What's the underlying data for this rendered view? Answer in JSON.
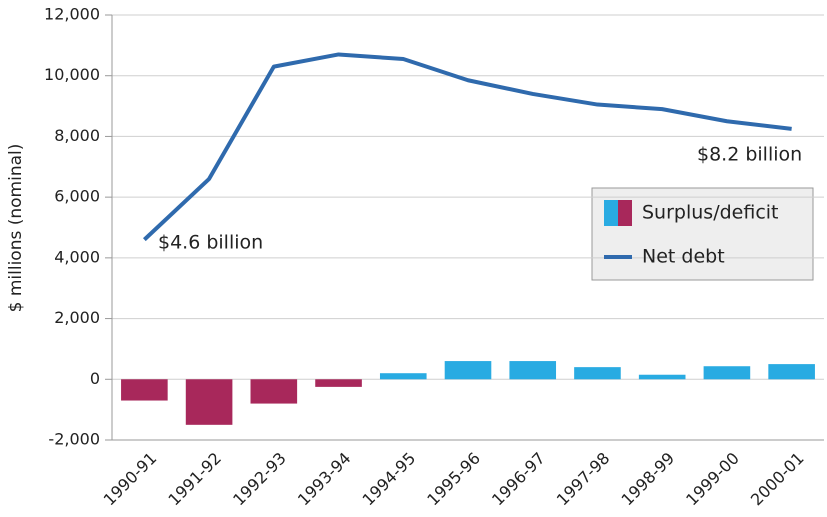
{
  "chart_data": {
    "type": "bar",
    "ylabel": "$ millions (nominal)",
    "categories": [
      "1990-91",
      "1991-92",
      "1992-93",
      "1993-94",
      "1994-95",
      "1995-96",
      "1996-97",
      "1997-98",
      "1998-99",
      "1999-00",
      "2000-01"
    ],
    "series": [
      {
        "name": "Surplus/deficit",
        "kind": "bar",
        "color": "#29abe2",
        "negative_color": "#a8285b",
        "values": [
          -700,
          -1500,
          -800,
          -250,
          200,
          600,
          600,
          400,
          150,
          430,
          500
        ]
      },
      {
        "name": "Net debt",
        "kind": "line",
        "color": "#2f6aad",
        "values": [
          4600,
          6600,
          10300,
          10700,
          10550,
          9850,
          9400,
          9050,
          8900,
          8500,
          8250
        ]
      }
    ],
    "ylim": [
      -2000,
      12000
    ],
    "yticks": [
      {
        "value": -2000,
        "label": "-2,000"
      },
      0,
      {
        "value": 2000,
        "label": "2,000"
      },
      {
        "value": 4000,
        "label": "4,000"
      },
      {
        "value": 6000,
        "label": "6,000"
      },
      {
        "value": 8000,
        "label": "8,000"
      },
      {
        "value": 10000,
        "label": "10,000"
      },
      {
        "value": 12000,
        "label": "12,000"
      }
    ],
    "grid": true,
    "legend": "right",
    "annotations": [
      {
        "text": "$4.6 billion"
      },
      {
        "text": "$8.2 billion"
      }
    ]
  }
}
